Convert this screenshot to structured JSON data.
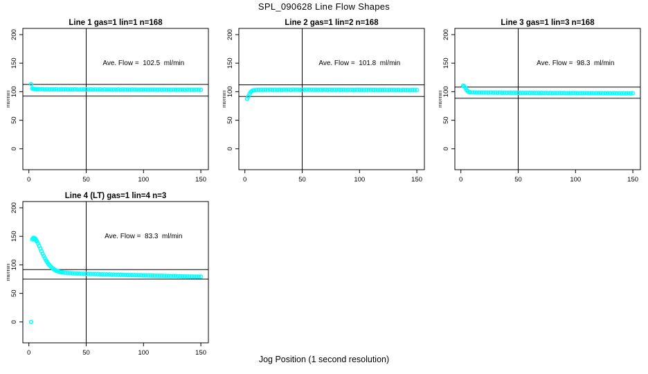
{
  "page": {
    "title": "SPL_090628  Line Flow Shapes",
    "xlabel": "Jog Position (1 second resolution)"
  },
  "style": {
    "point_color": "#00FFFF",
    "line_color": "#000000",
    "background": "#FFFFFF"
  },
  "axes": {
    "x_ticks": [
      0,
      50,
      100,
      150
    ],
    "y_ticks": [
      0,
      50,
      100,
      150,
      200
    ],
    "ylabel": "ml/min",
    "x_range": [
      -6,
      156
    ],
    "y_range": [
      0,
      210
    ],
    "grid": "off",
    "legend": "none",
    "vline_x": 50
  },
  "chart_data": [
    {
      "type": "scatter",
      "title": "Line 1 gas=1 lin=1 n=168",
      "annotation": "Ave. Flow =  102.5  ml/min",
      "ave_flow": 102.5,
      "ref_upper": 112.75,
      "ref_lower": 92.25,
      "vline_x": 50,
      "points": [
        [
          2,
          113.2
        ],
        [
          3,
          105.6
        ],
        [
          4,
          104.9
        ],
        [
          5,
          104.5
        ],
        [
          6,
          104.7
        ],
        [
          7,
          104.3
        ],
        [
          8,
          104.6
        ],
        [
          10,
          104.2
        ],
        [
          12,
          104.5
        ],
        [
          14,
          104.0
        ],
        [
          16,
          104.4
        ],
        [
          18,
          103.9
        ],
        [
          20,
          104.3
        ],
        [
          22,
          104.1
        ],
        [
          24,
          104.4
        ],
        [
          26,
          103.8
        ],
        [
          28,
          104.2
        ],
        [
          30,
          104.0
        ],
        [
          32,
          104.3
        ],
        [
          34,
          103.9
        ],
        [
          36,
          104.1
        ],
        [
          38,
          103.8
        ],
        [
          40,
          104.2
        ],
        [
          42,
          104.0
        ],
        [
          44,
          103.7
        ],
        [
          46,
          104.1
        ],
        [
          48,
          103.9
        ],
        [
          50,
          104.0
        ],
        [
          52,
          103.8
        ],
        [
          54,
          104.1
        ],
        [
          56,
          103.7
        ],
        [
          58,
          104.0
        ],
        [
          60,
          103.8
        ],
        [
          62,
          103.9
        ],
        [
          64,
          103.6
        ],
        [
          66,
          104.0
        ],
        [
          68,
          103.7
        ],
        [
          70,
          103.9
        ],
        [
          72,
          103.6
        ],
        [
          74,
          103.8
        ],
        [
          76,
          103.7
        ],
        [
          78,
          103.9
        ],
        [
          80,
          103.5
        ],
        [
          82,
          103.8
        ],
        [
          84,
          103.6
        ],
        [
          86,
          103.7
        ],
        [
          88,
          103.5
        ],
        [
          90,
          103.8
        ],
        [
          92,
          103.6
        ],
        [
          94,
          103.7
        ],
        [
          96,
          103.4
        ],
        [
          98,
          103.7
        ],
        [
          100,
          103.5
        ],
        [
          102,
          103.6
        ],
        [
          104,
          103.4
        ],
        [
          106,
          103.7
        ],
        [
          108,
          103.5
        ],
        [
          110,
          103.6
        ],
        [
          112,
          103.4
        ],
        [
          114,
          103.6
        ],
        [
          116,
          103.3
        ],
        [
          118,
          103.6
        ],
        [
          120,
          103.4
        ],
        [
          122,
          103.5
        ],
        [
          124,
          103.3
        ],
        [
          126,
          103.6
        ],
        [
          128,
          103.4
        ],
        [
          130,
          103.5
        ],
        [
          132,
          103.3
        ],
        [
          134,
          103.5
        ],
        [
          136,
          103.2
        ],
        [
          138,
          103.5
        ],
        [
          140,
          103.3
        ],
        [
          142,
          103.4
        ],
        [
          144,
          103.2
        ],
        [
          146,
          103.5
        ],
        [
          148,
          103.3
        ],
        [
          150,
          103.4
        ]
      ]
    },
    {
      "type": "scatter",
      "title": "Line 2 gas=1 lin=2 n=168",
      "annotation": "Ave. Flow =  101.8  ml/min",
      "ave_flow": 101.8,
      "ref_upper": 111.98,
      "ref_lower": 91.62,
      "vline_x": 50,
      "points": [
        [
          2,
          87.5
        ],
        [
          3,
          91.5
        ],
        [
          4,
          96.0
        ],
        [
          5,
          99.2
        ],
        [
          6,
          101.0
        ],
        [
          7,
          102.0
        ],
        [
          8,
          102.6
        ],
        [
          10,
          103.0
        ],
        [
          12,
          103.2
        ],
        [
          14,
          103.3
        ],
        [
          16,
          103.1
        ],
        [
          18,
          103.4
        ],
        [
          20,
          103.2
        ],
        [
          22,
          103.5
        ],
        [
          24,
          103.2
        ],
        [
          26,
          103.4
        ],
        [
          28,
          103.1
        ],
        [
          30,
          103.4
        ],
        [
          32,
          103.2
        ],
        [
          34,
          103.5
        ],
        [
          36,
          103.3
        ],
        [
          38,
          103.5
        ],
        [
          40,
          103.2
        ],
        [
          42,
          103.6
        ],
        [
          44,
          103.3
        ],
        [
          46,
          103.5
        ],
        [
          48,
          103.2
        ],
        [
          50,
          103.4
        ],
        [
          52,
          103.3
        ],
        [
          54,
          103.6
        ],
        [
          56,
          103.3
        ],
        [
          58,
          103.5
        ],
        [
          60,
          103.2
        ],
        [
          62,
          103.4
        ],
        [
          64,
          103.1
        ],
        [
          66,
          103.4
        ],
        [
          68,
          103.2
        ],
        [
          70,
          103.5
        ],
        [
          72,
          103.2
        ],
        [
          74,
          103.4
        ],
        [
          76,
          103.1
        ],
        [
          78,
          103.3
        ],
        [
          80,
          103.2
        ],
        [
          82,
          103.4
        ],
        [
          84,
          103.1
        ],
        [
          86,
          103.3
        ],
        [
          88,
          103.0
        ],
        [
          90,
          103.3
        ],
        [
          92,
          103.1
        ],
        [
          94,
          103.2
        ],
        [
          96,
          103.0
        ],
        [
          98,
          103.3
        ],
        [
          100,
          103.1
        ],
        [
          102,
          103.2
        ],
        [
          104,
          103.0
        ],
        [
          106,
          103.2
        ],
        [
          108,
          103.1
        ],
        [
          110,
          103.3
        ],
        [
          112,
          103.0
        ],
        [
          114,
          103.2
        ],
        [
          116,
          102.9
        ],
        [
          118,
          103.2
        ],
        [
          120,
          103.0
        ],
        [
          122,
          103.1
        ],
        [
          124,
          102.9
        ],
        [
          126,
          103.2
        ],
        [
          128,
          103.0
        ],
        [
          130,
          103.1
        ],
        [
          132,
          102.9
        ],
        [
          134,
          103.1
        ],
        [
          136,
          102.8
        ],
        [
          138,
          103.1
        ],
        [
          140,
          102.9
        ],
        [
          142,
          103.0
        ],
        [
          144,
          102.8
        ],
        [
          146,
          103.1
        ],
        [
          148,
          102.9
        ],
        [
          150,
          103.0
        ]
      ]
    },
    {
      "type": "scatter",
      "title": "Line 3 gas=1 lin=3 n=168",
      "annotation": "Ave. Flow =  98.3  ml/min",
      "ave_flow": 98.3,
      "ref_upper": 108.13,
      "ref_lower": 88.47,
      "vline_x": 50,
      "points": [
        [
          2,
          110.6
        ],
        [
          3,
          109.5
        ],
        [
          4,
          106.5
        ],
        [
          5,
          103.0
        ],
        [
          6,
          100.8
        ],
        [
          7,
          99.6
        ],
        [
          8,
          99.0
        ],
        [
          10,
          98.8
        ],
        [
          12,
          98.7
        ],
        [
          14,
          98.6
        ],
        [
          16,
          98.5
        ],
        [
          18,
          98.6
        ],
        [
          20,
          98.4
        ],
        [
          22,
          98.6
        ],
        [
          24,
          98.3
        ],
        [
          26,
          98.5
        ],
        [
          28,
          98.3
        ],
        [
          30,
          98.4
        ],
        [
          32,
          98.2
        ],
        [
          34,
          98.4
        ],
        [
          36,
          98.1
        ],
        [
          38,
          98.3
        ],
        [
          40,
          98.1
        ],
        [
          42,
          98.3
        ],
        [
          44,
          98.0
        ],
        [
          46,
          98.2
        ],
        [
          48,
          98.0
        ],
        [
          50,
          98.1
        ],
        [
          52,
          97.9
        ],
        [
          54,
          98.1
        ],
        [
          56,
          97.9
        ],
        [
          58,
          98.0
        ],
        [
          60,
          97.8
        ],
        [
          62,
          98.0
        ],
        [
          64,
          97.8
        ],
        [
          66,
          97.9
        ],
        [
          68,
          97.7
        ],
        [
          70,
          97.9
        ],
        [
          72,
          97.7
        ],
        [
          74,
          97.8
        ],
        [
          76,
          97.6
        ],
        [
          78,
          97.8
        ],
        [
          80,
          97.6
        ],
        [
          82,
          97.7
        ],
        [
          84,
          97.6
        ],
        [
          86,
          97.8
        ],
        [
          88,
          97.5
        ],
        [
          90,
          97.7
        ],
        [
          92,
          97.5
        ],
        [
          94,
          97.6
        ],
        [
          96,
          97.5
        ],
        [
          98,
          97.7
        ],
        [
          100,
          97.4
        ],
        [
          102,
          97.6
        ],
        [
          104,
          97.4
        ],
        [
          106,
          97.5
        ],
        [
          108,
          97.4
        ],
        [
          110,
          97.6
        ],
        [
          112,
          97.3
        ],
        [
          114,
          97.5
        ],
        [
          116,
          97.3
        ],
        [
          118,
          97.4
        ],
        [
          120,
          97.3
        ],
        [
          122,
          97.5
        ],
        [
          124,
          97.2
        ],
        [
          126,
          97.4
        ],
        [
          128,
          97.2
        ],
        [
          130,
          97.3
        ],
        [
          132,
          97.2
        ],
        [
          134,
          97.4
        ],
        [
          136,
          97.1
        ],
        [
          138,
          97.3
        ],
        [
          140,
          97.1
        ],
        [
          142,
          97.2
        ],
        [
          144,
          97.1
        ],
        [
          146,
          97.3
        ],
        [
          148,
          97.0
        ],
        [
          150,
          97.2
        ]
      ]
    },
    {
      "type": "scatter",
      "title": "Line 4 (LT) gas=1 lin=4 n=3",
      "annotation": "Ave. Flow =  83.3  ml/min",
      "ave_flow": 83.3,
      "ref_upper": 91.63,
      "ref_lower": 74.97,
      "vline_x": 50,
      "points": [
        [
          2,
          0
        ],
        [
          3,
          144.5
        ],
        [
          3.5,
          146.5
        ],
        [
          4,
          147.2
        ],
        [
          4.5,
          145.8
        ],
        [
          5,
          146.8
        ],
        [
          5.5,
          144.0
        ],
        [
          6,
          145.2
        ],
        [
          6.5,
          142.5
        ],
        [
          7,
          141.0
        ],
        [
          8,
          137.5
        ],
        [
          9,
          133.0
        ],
        [
          10,
          128.5
        ],
        [
          11,
          124.0
        ],
        [
          12,
          119.5
        ],
        [
          13,
          115.5
        ],
        [
          14,
          111.5
        ],
        [
          15,
          108.0
        ],
        [
          16,
          104.8
        ],
        [
          17,
          102.0
        ],
        [
          18,
          99.5
        ],
        [
          19,
          97.2
        ],
        [
          20,
          95.2
        ],
        [
          21,
          93.5
        ],
        [
          22,
          92.0
        ],
        [
          23,
          90.8
        ],
        [
          24,
          89.8
        ],
        [
          25,
          89.0
        ],
        [
          26,
          88.3
        ],
        [
          27,
          87.8
        ],
        [
          28,
          87.3
        ],
        [
          29,
          87.0
        ],
        [
          30,
          86.7
        ],
        [
          32,
          86.2
        ],
        [
          34,
          85.8
        ],
        [
          36,
          85.5
        ],
        [
          38,
          85.2
        ],
        [
          40,
          85.0
        ],
        [
          42,
          84.8
        ],
        [
          44,
          84.7
        ],
        [
          46,
          84.5
        ],
        [
          48,
          84.4
        ],
        [
          50,
          84.3
        ],
        [
          52,
          84.1
        ],
        [
          54,
          84.0
        ],
        [
          56,
          83.9
        ],
        [
          58,
          83.8
        ],
        [
          60,
          83.7
        ],
        [
          62,
          83.5
        ],
        [
          64,
          83.4
        ],
        [
          66,
          83.3
        ],
        [
          68,
          83.2
        ],
        [
          70,
          83.1
        ],
        [
          72,
          83.0
        ],
        [
          74,
          82.9
        ],
        [
          76,
          82.8
        ],
        [
          78,
          82.7
        ],
        [
          80,
          82.6
        ],
        [
          82,
          82.5
        ],
        [
          84,
          82.4
        ],
        [
          86,
          82.3
        ],
        [
          88,
          82.2
        ],
        [
          90,
          82.1
        ],
        [
          92,
          82.0
        ],
        [
          94,
          81.9
        ],
        [
          96,
          81.8
        ],
        [
          98,
          81.7
        ],
        [
          100,
          81.6
        ],
        [
          102,
          81.5
        ],
        [
          104,
          81.4
        ],
        [
          106,
          81.3
        ],
        [
          108,
          81.2
        ],
        [
          110,
          81.1
        ],
        [
          112,
          81.0
        ],
        [
          114,
          80.9
        ],
        [
          116,
          80.8
        ],
        [
          118,
          80.7
        ],
        [
          120,
          80.6
        ],
        [
          122,
          80.5
        ],
        [
          124,
          80.4
        ],
        [
          126,
          80.3
        ],
        [
          128,
          80.2
        ],
        [
          130,
          80.1
        ],
        [
          132,
          80.0
        ],
        [
          134,
          79.9
        ],
        [
          136,
          79.8
        ],
        [
          138,
          79.7
        ],
        [
          140,
          79.6
        ],
        [
          142,
          79.5
        ],
        [
          144,
          79.5
        ],
        [
          146,
          79.4
        ],
        [
          148,
          79.4
        ],
        [
          150,
          79.3
        ]
      ]
    }
  ]
}
